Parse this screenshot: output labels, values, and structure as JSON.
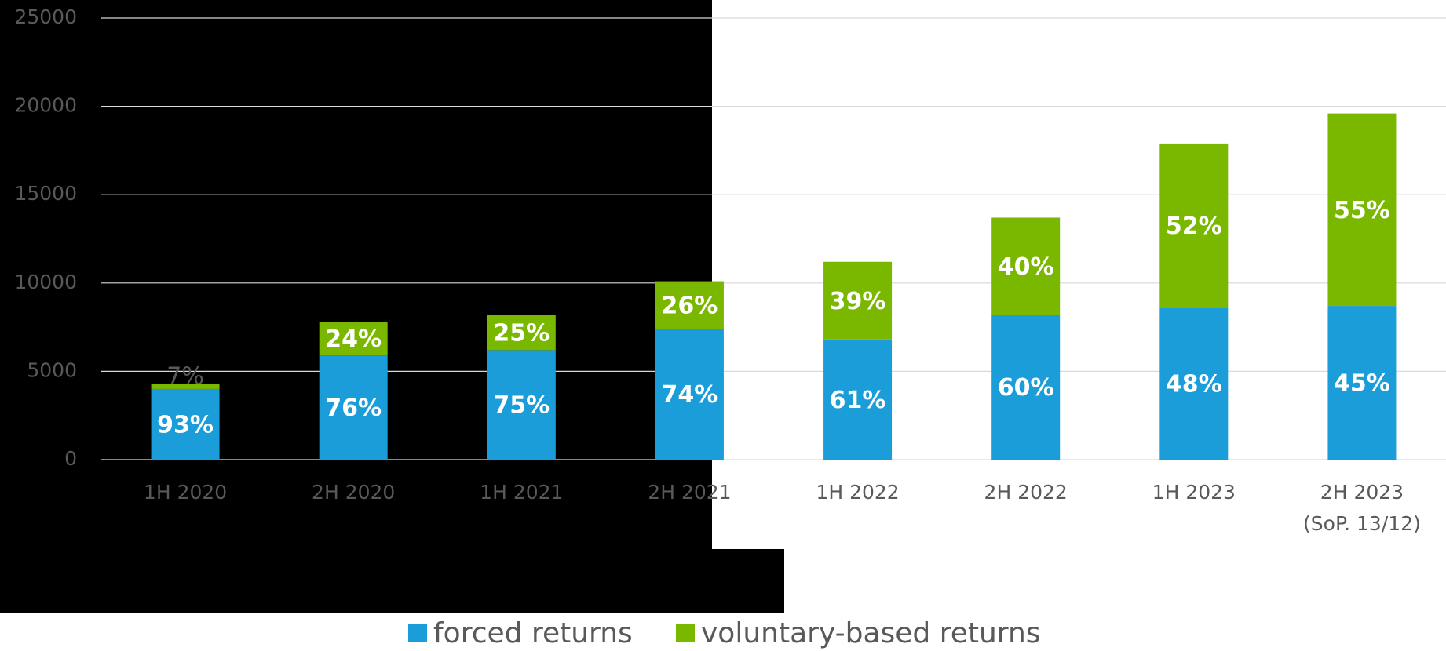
{
  "chart_data": {
    "type": "stacked_bar",
    "categories": [
      "1H 2020",
      "2H 2020",
      "1H 2021",
      "2H 2021",
      "1H 2022",
      "2H 2022",
      "1H 2023",
      "2H 2023\n(SoP. 13/12)"
    ],
    "series": [
      {
        "name": "forced returns",
        "color": "#1b9dd9",
        "values": [
          4000,
          5900,
          6200,
          7400,
          6800,
          8200,
          8600,
          8700
        ],
        "share_labels": [
          "93%",
          "76%",
          "75%",
          "74%",
          "61%",
          "60%",
          "48%",
          "45%"
        ]
      },
      {
        "name": "voluntary-based returns",
        "color": "#7ab800",
        "values": [
          300,
          1900,
          2000,
          2700,
          4400,
          5500,
          9300,
          10900
        ],
        "share_labels": [
          "7%",
          "24%",
          "25%",
          "26%",
          "39%",
          "40%",
          "52%",
          "55%"
        ]
      }
    ],
    "ylim": [
      0,
      25000
    ],
    "yticks": [
      0,
      5000,
      10000,
      15000,
      20000,
      25000
    ],
    "grid": true,
    "legend": "bottom"
  }
}
